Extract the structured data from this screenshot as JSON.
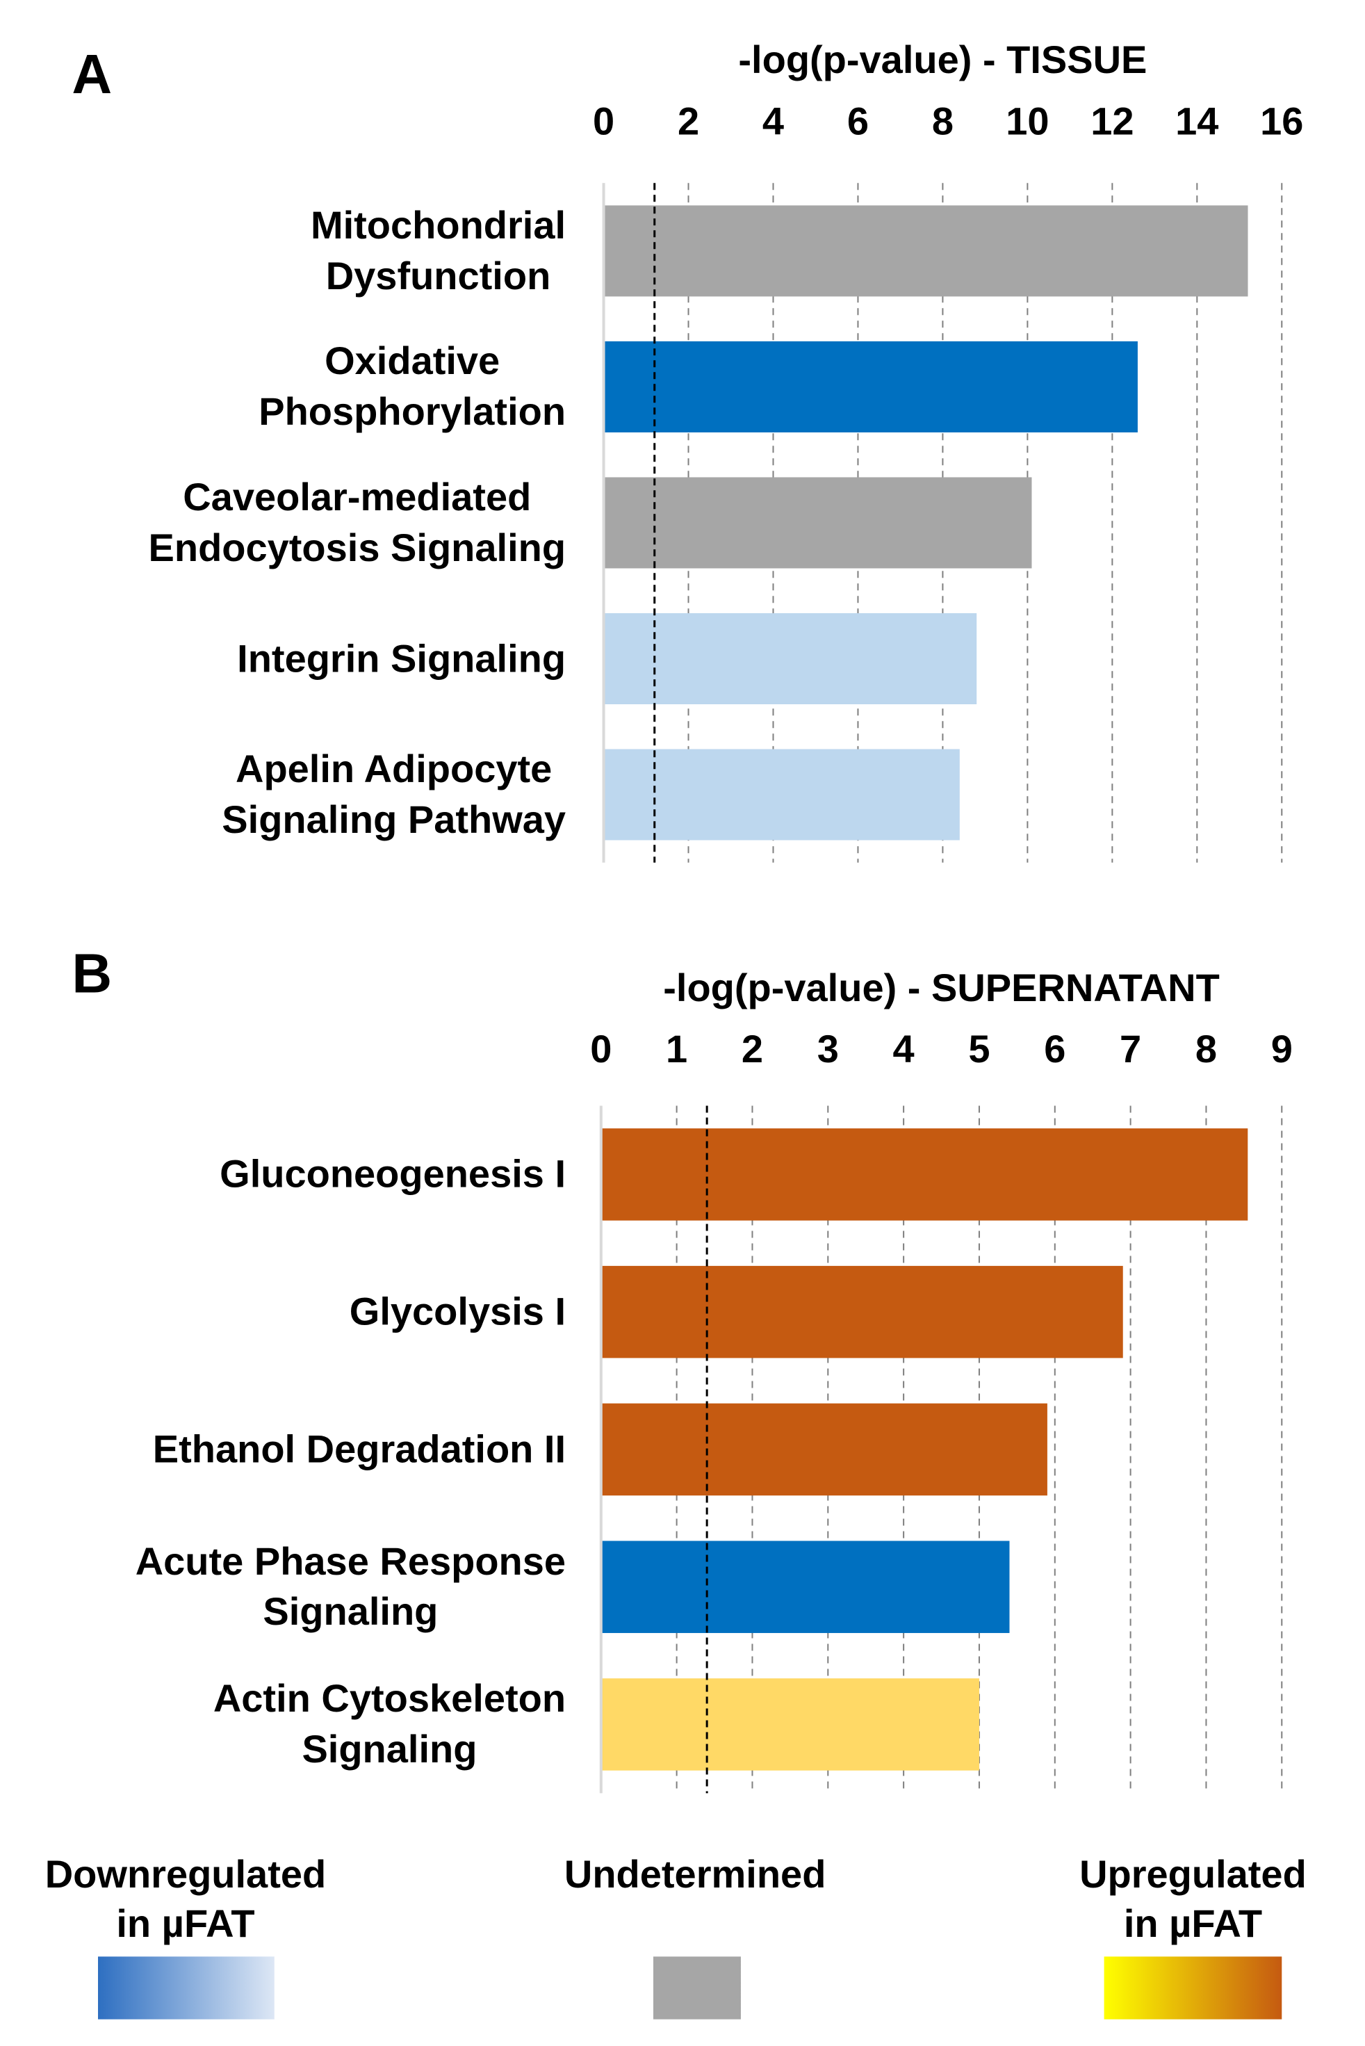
{
  "chart_data": [
    {
      "type": "bar",
      "panel": "A",
      "xlabel": "-log(p-value) - TISSUE",
      "categories": [
        "Mitochondrial\nDysfunction",
        "Oxidative\nPhosphorylation",
        "Caveolar-mediated\nEndocytosis Signaling",
        "Integrin Signaling",
        "Apelin Adipocyte\nSignaling Pathway"
      ],
      "values": [
        15.2,
        12.6,
        10.1,
        8.8,
        8.4
      ],
      "colors": [
        "#a6a6a6",
        "#0070c0",
        "#a6a6a6",
        "#bdd7ee",
        "#bdd7ee"
      ],
      "xlim": [
        0,
        16
      ],
      "xticks": [
        0,
        2,
        4,
        6,
        8,
        10,
        12,
        14,
        16
      ],
      "threshold": 1.2,
      "grid": true
    },
    {
      "type": "bar",
      "panel": "B",
      "xlabel": "-log(p-value) - SUPERNATANT",
      "categories": [
        "Gluconeogenesis I",
        "Glycolysis I",
        "Ethanol Degradation II",
        "Acute Phase Response\nSignaling",
        "Actin Cytoskeleton\nSignaling"
      ],
      "values": [
        8.55,
        6.9,
        5.9,
        5.4,
        5.0
      ],
      "colors": [
        "#c55a11",
        "#c55a11",
        "#c55a11",
        "#0070c0",
        "#ffd966"
      ],
      "xlim": [
        0,
        9
      ],
      "xticks": [
        0,
        1,
        2,
        3,
        4,
        5,
        6,
        7,
        8,
        9
      ],
      "threshold": 1.4,
      "grid": true
    }
  ],
  "legend": [
    {
      "label": "Downregulated\nin µFAT",
      "colors": [
        "#2e6fc1",
        "#dde7f5"
      ]
    },
    {
      "label": "Undetermined",
      "colors": [
        "#a6a6a6",
        "#a6a6a6"
      ]
    },
    {
      "label": "Upregulated\nin µFAT",
      "colors": [
        "#ffff00",
        "#c55a11"
      ]
    }
  ]
}
